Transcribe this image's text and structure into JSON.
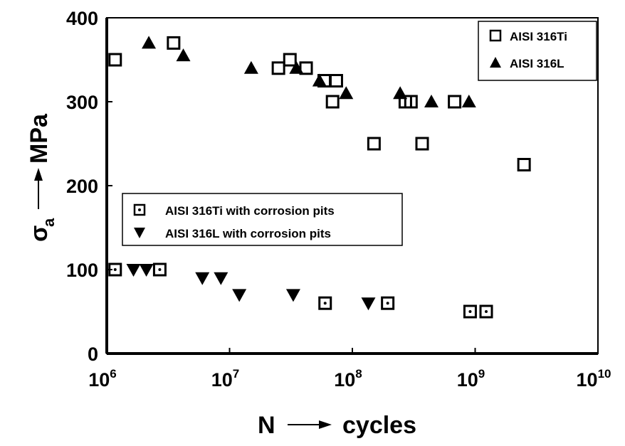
{
  "chart_data": {
    "type": "scatter",
    "title": "",
    "xlabel": "N → cycles",
    "xlabel_parts": {
      "symbol": "N",
      "unit": "cycles"
    },
    "ylabel": "σa → MPa",
    "ylabel_parts": {
      "symbol": "σ",
      "subscript": "a",
      "unit": "MPa"
    },
    "xscale": "log",
    "xlim": [
      1000000,
      10000000000
    ],
    "ylim": [
      0,
      400
    ],
    "x_ticks": [
      {
        "base": "10",
        "exp": "6",
        "value": 1000000
      },
      {
        "base": "10",
        "exp": "7",
        "value": 10000000
      },
      {
        "base": "10",
        "exp": "8",
        "value": 100000000
      },
      {
        "base": "10",
        "exp": "9",
        "value": 1000000000
      },
      {
        "base": "10",
        "exp": "10",
        "value": 10000000000
      }
    ],
    "y_ticks": [
      "0",
      "100",
      "200",
      "300",
      "400"
    ],
    "grid": false,
    "legends": [
      {
        "placement": "top-right",
        "entries": [
          "AISI 316Ti",
          "AISI 316L"
        ]
      },
      {
        "placement": "center-left",
        "entries": [
          "AISI 316Ti with corrosion pits",
          "AISI 316L with corrosion pits"
        ]
      }
    ],
    "series": [
      {
        "name": "AISI 316Ti",
        "marker": "open-square",
        "points": [
          [
            1170000.0,
            350
          ],
          [
            3500000.0,
            370
          ],
          [
            25000000.0,
            340
          ],
          [
            31000000.0,
            350
          ],
          [
            42000000.0,
            340
          ],
          [
            59000000.0,
            325
          ],
          [
            74000000.0,
            325
          ],
          [
            69000000.0,
            300
          ],
          [
            270000000.0,
            300
          ],
          [
            300000000.0,
            300
          ],
          [
            150000000.0,
            250
          ],
          [
            370000000.0,
            250
          ],
          [
            680000000.0,
            300
          ],
          [
            2500000000.0,
            225
          ]
        ]
      },
      {
        "name": "AISI 316L",
        "marker": "filled-triangle-up",
        "points": [
          [
            2200000.0,
            370
          ],
          [
            4200000.0,
            355
          ],
          [
            15000000.0,
            340
          ],
          [
            35000000.0,
            340
          ],
          [
            54000000.0,
            325
          ],
          [
            89000000.0,
            310
          ],
          [
            245000000.0,
            310
          ],
          [
            440000000.0,
            300
          ],
          [
            890000000.0,
            300
          ]
        ]
      },
      {
        "name": "AISI 316Ti with corrosion pits",
        "marker": "dotted-square",
        "points": [
          [
            1170000.0,
            100
          ],
          [
            2700000.0,
            100
          ],
          [
            60000000.0,
            60
          ],
          [
            194000000.0,
            60
          ],
          [
            910000000.0,
            50
          ],
          [
            1230000000.0,
            50
          ]
        ]
      },
      {
        "name": "AISI 316L with corrosion pits",
        "marker": "filled-triangle-down",
        "points": [
          [
            1650000.0,
            100
          ],
          [
            2100000.0,
            100
          ],
          [
            6000000.0,
            90
          ],
          [
            8500000.0,
            90
          ],
          [
            12000000.0,
            70
          ],
          [
            33000000.0,
            70
          ],
          [
            135000000.0,
            60
          ]
        ]
      }
    ]
  }
}
